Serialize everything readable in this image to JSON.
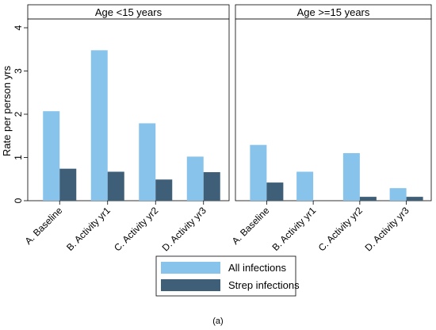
{
  "chart_data": {
    "type": "bar",
    "ylabel": "Rate per person yrs",
    "ylim": [
      0,
      4
    ],
    "yticks": [
      0,
      1,
      2,
      3,
      4
    ],
    "grid": false,
    "legend_position": "bottom",
    "caption": "(a)",
    "categories": [
      "A. Baseline",
      "B. Activity yr1",
      "C. Activity yr2",
      "D. Activity yr3"
    ],
    "colors": {
      "All infections": "#87c3eb",
      "Strep infections": "#3f5f78"
    },
    "panels": [
      {
        "title": "Age <15 years",
        "series": [
          {
            "name": "All infections",
            "values": [
              2.07,
              3.48,
              1.79,
              1.02
            ]
          },
          {
            "name": "Strep infections",
            "values": [
              0.74,
              0.67,
              0.49,
              0.66
            ]
          }
        ]
      },
      {
        "title": "Age >=15 years",
        "series": [
          {
            "name": "All infections",
            "values": [
              1.29,
              0.67,
              1.1,
              0.29
            ]
          },
          {
            "name": "Strep infections",
            "values": [
              0.42,
              0.0,
              0.09,
              0.09
            ]
          }
        ]
      }
    ]
  }
}
